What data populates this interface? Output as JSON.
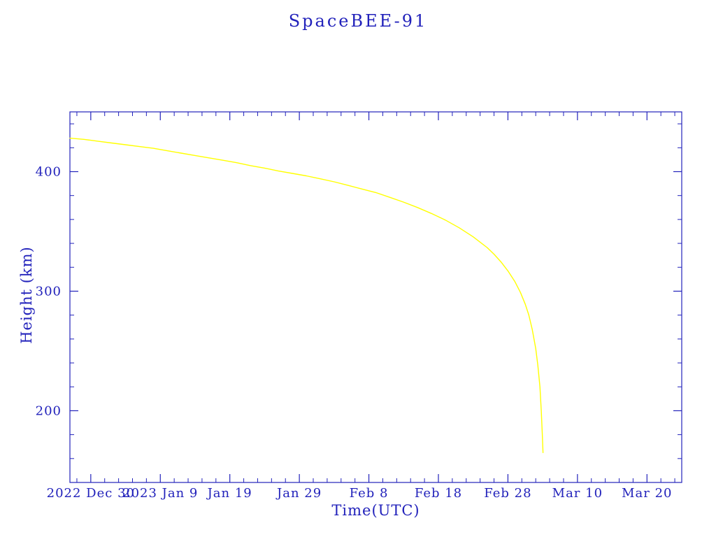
{
  "page": {
    "background_color": "#ffffff"
  },
  "chart_data": {
    "type": "line",
    "title": "SpaceBEE-91",
    "xlabel": "Time(UTC)",
    "ylabel": "Height (km)",
    "x_epoch": "2022-12-27",
    "x_unit": "days since 2022-12-27",
    "xlim_days": [
      0,
      88
    ],
    "ylim": [
      140,
      450
    ],
    "grid": false,
    "legend": "none",
    "axis_color": "#2222bb",
    "line_color": "#ffff00",
    "x_ticks": [
      {
        "day": 3,
        "label": "2022 Dec 30"
      },
      {
        "day": 13,
        "label": "2023 Jan 9"
      },
      {
        "day": 23,
        "label": "Jan 19"
      },
      {
        "day": 33,
        "label": "Jan 29"
      },
      {
        "day": 43,
        "label": "Feb 8"
      },
      {
        "day": 53,
        "label": "Feb 18"
      },
      {
        "day": 63,
        "label": "Feb 28"
      },
      {
        "day": 73,
        "label": "Mar 10"
      },
      {
        "day": 83,
        "label": "Mar 20"
      }
    ],
    "x_minor_step_days": 2,
    "y_major_ticks": [
      200,
      300,
      400
    ],
    "y_minor_step": 20,
    "series": [
      {
        "name": "SpaceBEE-91 orbital height (km)",
        "points": [
          [
            0,
            428
          ],
          [
            2,
            427
          ],
          [
            4,
            425.5
          ],
          [
            6,
            424
          ],
          [
            8,
            422.5
          ],
          [
            10,
            421
          ],
          [
            12,
            419.5
          ],
          [
            14,
            417.5
          ],
          [
            16,
            415.5
          ],
          [
            18,
            413.5
          ],
          [
            20,
            411.5
          ],
          [
            22,
            409.5
          ],
          [
            24,
            407.5
          ],
          [
            26,
            405
          ],
          [
            28,
            403
          ],
          [
            30,
            400.5
          ],
          [
            32,
            398.5
          ],
          [
            34,
            396.5
          ],
          [
            36,
            394
          ],
          [
            38,
            391.5
          ],
          [
            40,
            388.5
          ],
          [
            42,
            385.5
          ],
          [
            44,
            382.5
          ],
          [
            46,
            378.5
          ],
          [
            48,
            374.5
          ],
          [
            50,
            370
          ],
          [
            52,
            365
          ],
          [
            54,
            359.5
          ],
          [
            56,
            353
          ],
          [
            58,
            345.5
          ],
          [
            60,
            336.5
          ],
          [
            61,
            331
          ],
          [
            62,
            324.5
          ],
          [
            63,
            317
          ],
          [
            64,
            308
          ],
          [
            64.8,
            299
          ],
          [
            65.5,
            289
          ],
          [
            66,
            280
          ],
          [
            66.5,
            268
          ],
          [
            67,
            252
          ],
          [
            67.3,
            238
          ],
          [
            67.6,
            220
          ],
          [
            67.8,
            200
          ],
          [
            67.95,
            180
          ],
          [
            68.05,
            165
          ]
        ]
      }
    ]
  }
}
